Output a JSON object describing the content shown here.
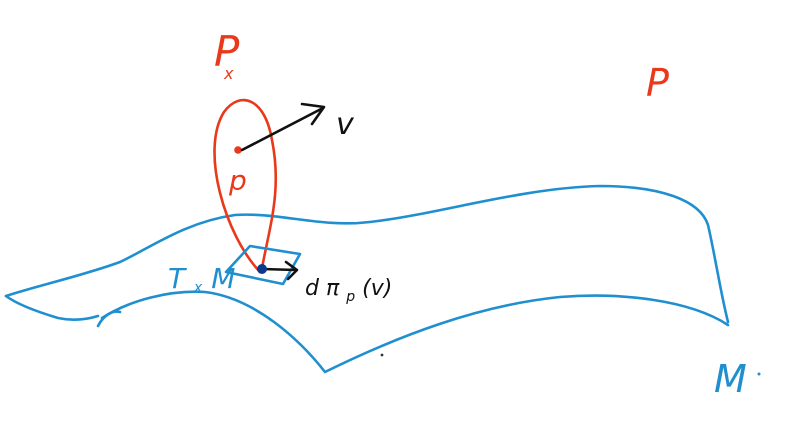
{
  "labels": {
    "fiber": "P",
    "fiber_subscript": "x",
    "bundle": "P",
    "point": "p",
    "vector": "v",
    "tangent_space": "T",
    "tangent_space_subscript": "x",
    "tangent_space_manifold": "M",
    "pushforward_d": "d",
    "pushforward_pi": "π",
    "pushforward_sub": "p",
    "pushforward_arg": "(v)",
    "manifold": "M"
  },
  "colors": {
    "fiber": "#e8391a",
    "manifold": "#1f8fd0",
    "vector": "#111111",
    "tangent_plane": "#1f8fd0",
    "base_point": "#0b3a8c"
  }
}
